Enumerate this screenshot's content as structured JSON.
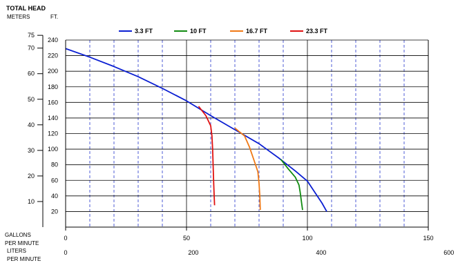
{
  "chart_data": {
    "type": "line",
    "title": "TOTAL HEAD",
    "y_units": {
      "left": "METERS",
      "right": "FT."
    },
    "x_axis_label_gpm": [
      "GALLONS",
      "PER MINUTE"
    ],
    "x_axis_label_lpm": [
      "LITERS",
      "PER MINUTE"
    ],
    "x_gpm": {
      "min": 0,
      "max": 150,
      "ticks": [
        0,
        50,
        100,
        150
      ]
    },
    "x_lpm": {
      "ticks": [
        0,
        200,
        400,
        600
      ]
    },
    "y_ft": {
      "min": 0,
      "max": 240,
      "ticks": [
        20,
        40,
        60,
        80,
        100,
        120,
        140,
        160,
        180,
        200,
        220,
        240
      ]
    },
    "y_m": {
      "ticks": [
        10,
        20,
        30,
        40,
        50,
        60,
        70,
        75
      ]
    },
    "grid": true,
    "legend": {
      "placement": "top"
    },
    "series": [
      {
        "name": "3.3 FT",
        "color": "#0a1ed2",
        "points": [
          [
            0,
            229
          ],
          [
            10,
            218
          ],
          [
            20,
            206
          ],
          [
            30,
            193
          ],
          [
            40,
            178
          ],
          [
            50,
            162
          ],
          [
            60,
            143
          ],
          [
            70,
            125
          ],
          [
            80,
            107
          ],
          [
            88,
            89
          ],
          [
            95,
            72
          ],
          [
            100,
            59
          ],
          [
            103,
            45
          ],
          [
            106,
            31
          ],
          [
            108,
            20
          ]
        ]
      },
      {
        "name": "10 FT",
        "color": "#108a10",
        "points": [
          [
            89,
            87
          ],
          [
            92,
            75
          ],
          [
            95,
            64
          ],
          [
            96.5,
            54
          ],
          [
            97,
            45
          ],
          [
            97.5,
            33
          ],
          [
            98,
            22
          ]
        ]
      },
      {
        "name": "16.7 FT",
        "color": "#f07814",
        "points": [
          [
            70,
            127
          ],
          [
            74,
            117
          ],
          [
            76,
            103
          ],
          [
            78,
            85
          ],
          [
            79.5,
            71
          ],
          [
            80,
            56
          ],
          [
            80.3,
            40
          ],
          [
            80.5,
            22
          ]
        ]
      },
      {
        "name": "23.3 FT",
        "color": "#e01010",
        "points": [
          [
            55,
            155
          ],
          [
            58,
            143
          ],
          [
            60,
            130
          ],
          [
            60.5,
            117
          ],
          [
            60.8,
            100
          ],
          [
            61,
            80
          ],
          [
            61.2,
            60
          ],
          [
            61.4,
            43
          ],
          [
            61.6,
            28
          ]
        ]
      }
    ]
  }
}
